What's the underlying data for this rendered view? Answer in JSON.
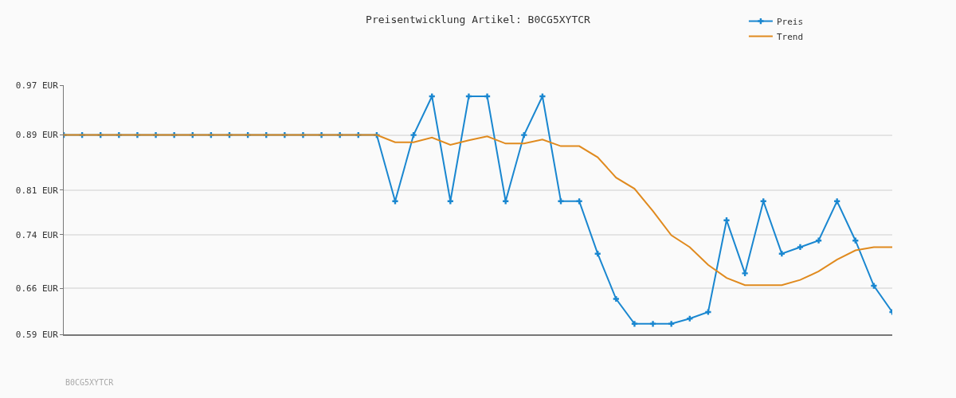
{
  "chart_data": {
    "type": "line",
    "title": "Preisentwicklung Artikel: B0CG5XYTCR",
    "categories": [
      null,
      null,
      null,
      null,
      null,
      null,
      null,
      null,
      null,
      null,
      null,
      null,
      null,
      null,
      null,
      null,
      null,
      null,
      null,
      null,
      null,
      null,
      null,
      null,
      null,
      null,
      null,
      null,
      null,
      null,
      null,
      null,
      null,
      null,
      null,
      null,
      null,
      null,
      null,
      null,
      null,
      null,
      null,
      null,
      null,
      null
    ],
    "series": [
      {
        "name": "Preis",
        "color": "#1a87d0",
        "marker": "cross",
        "values": [
          0.894,
          0.894,
          0.894,
          0.894,
          0.894,
          0.894,
          0.894,
          0.894,
          0.894,
          0.894,
          0.894,
          0.894,
          0.894,
          0.894,
          0.894,
          0.894,
          0.894,
          0.894,
          0.793,
          0.894,
          0.953,
          0.793,
          0.953,
          0.953,
          0.793,
          0.894,
          0.953,
          0.793,
          0.793,
          0.713,
          0.644,
          0.606,
          0.606,
          0.606,
          0.614,
          0.624,
          0.764,
          0.683,
          0.793,
          0.713,
          0.723,
          0.733,
          0.793,
          0.733,
          0.664,
          0.624
        ]
      },
      {
        "name": "Trend",
        "color": "#e08a1e",
        "marker": "none",
        "values": [
          0.894,
          0.894,
          0.894,
          0.894,
          0.894,
          0.894,
          0.894,
          0.894,
          0.894,
          0.894,
          0.894,
          0.894,
          0.894,
          0.894,
          0.894,
          0.894,
          0.894,
          0.894,
          0.883,
          0.883,
          0.89,
          0.879,
          0.886,
          0.892,
          0.881,
          0.881,
          0.887,
          0.877,
          0.877,
          0.86,
          0.829,
          0.812,
          0.778,
          0.741,
          0.723,
          0.696,
          0.676,
          0.665,
          0.665,
          0.665,
          0.673,
          0.686,
          0.704,
          0.718,
          0.723,
          0.723
        ]
      }
    ],
    "ylim": [
      0.59,
      0.97
    ],
    "yticks": [
      {
        "value": 0.59,
        "label": "0.59 EUR"
      },
      {
        "value": 0.66,
        "label": "0.66 EUR"
      },
      {
        "value": 0.742,
        "label": "0.74 EUR"
      },
      {
        "value": 0.81,
        "label": "0.81 EUR"
      },
      {
        "value": 0.894,
        "label": "0.89 EUR"
      },
      {
        "value": 0.97,
        "label": "0.97 EUR"
      }
    ],
    "grid": "y",
    "legend": "top right",
    "line_style": "solid",
    "annotations": [
      "B0CG5XYTCR"
    ]
  }
}
